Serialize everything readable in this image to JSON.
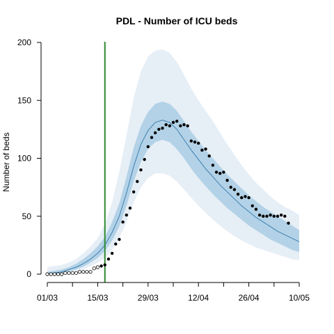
{
  "chart_data": {
    "type": "line",
    "title": "PDL - Number of ICU beds",
    "xlabel": "",
    "ylabel": "Number of beds",
    "x_range_days_from_first": [
      0,
      70
    ],
    "x_ticks": [
      {
        "day": 0,
        "label": "01/03"
      },
      {
        "day": 14,
        "label": "15/03"
      },
      {
        "day": 28,
        "label": "29/03"
      },
      {
        "day": 42,
        "label": "12/04"
      },
      {
        "day": 56,
        "label": "26/04"
      },
      {
        "day": 70,
        "label": "10/05"
      }
    ],
    "y_ticks": [
      0,
      50,
      100,
      150,
      200
    ],
    "ylim": [
      0,
      200
    ],
    "vertical_line": {
      "day": 16,
      "color": "#2e8b2e"
    },
    "colors": {
      "outer_band": "#e6eef6",
      "inner_band": "#b3d2e7",
      "median_line": "#3d7fb0",
      "observed": "#000000",
      "vline": "#2e8b2e"
    },
    "model": {
      "days": [
        0,
        2,
        4,
        6,
        8,
        10,
        12,
        14,
        16,
        18,
        20,
        22,
        24,
        26,
        28,
        30,
        32,
        34,
        36,
        38,
        40,
        42,
        44,
        46,
        48,
        50,
        52,
        54,
        56,
        58,
        60,
        62,
        64,
        66,
        68,
        70
      ],
      "median": [
        0,
        1,
        2,
        4,
        6,
        9,
        13,
        18,
        25,
        36,
        50,
        70,
        93,
        112,
        124,
        131,
        133,
        131,
        125,
        116,
        107,
        99,
        91,
        84,
        77,
        71,
        65,
        59,
        54,
        49,
        45,
        41,
        37,
        34,
        31,
        28
      ],
      "inner_lo": [
        0,
        0.5,
        1,
        2.5,
        4,
        6.5,
        10,
        14,
        20,
        29,
        41,
        59,
        80,
        97,
        108,
        114,
        116,
        114,
        108,
        100,
        91,
        83,
        76,
        69,
        63,
        57,
        52,
        47,
        42,
        38,
        34,
        30,
        27,
        24,
        21,
        19
      ],
      "inner_hi": [
        2,
        3,
        4,
        6,
        9,
        13,
        18,
        24,
        32,
        45,
        61,
        84,
        109,
        128,
        140,
        147,
        149,
        147,
        141,
        132,
        123,
        115,
        107,
        100,
        93,
        86,
        80,
        74,
        68,
        63,
        58,
        54,
        50,
        46,
        42,
        38
      ],
      "outer_lo": [
        0,
        0.3,
        0.6,
        1.5,
        2.5,
        4,
        7,
        10,
        14,
        21,
        31,
        45,
        62,
        75,
        83,
        87,
        87,
        85,
        80,
        73,
        66,
        59,
        53,
        47,
        42,
        37,
        33,
        29,
        26,
        23,
        21,
        19,
        17,
        15,
        13,
        12
      ],
      "outer_hi": [
        6,
        7,
        8,
        10,
        13,
        18,
        24,
        31,
        43,
        62,
        88,
        120,
        152,
        175,
        188,
        193,
        194,
        191,
        183,
        172,
        160,
        150,
        141,
        132,
        122,
        112,
        103,
        94,
        86,
        79,
        73,
        67,
        62,
        58,
        55,
        51
      ]
    },
    "observed_before": [
      {
        "day": 0,
        "value": 0
      },
      {
        "day": 1,
        "value": 0
      },
      {
        "day": 2,
        "value": 0
      },
      {
        "day": 3,
        "value": 0
      },
      {
        "day": 4,
        "value": 0
      },
      {
        "day": 5,
        "value": 1
      },
      {
        "day": 6,
        "value": 1
      },
      {
        "day": 7,
        "value": 1
      },
      {
        "day": 8,
        "value": 1
      },
      {
        "day": 9,
        "value": 2
      },
      {
        "day": 10,
        "value": 2
      },
      {
        "day": 11,
        "value": 2
      },
      {
        "day": 12,
        "value": 2
      },
      {
        "day": 13,
        "value": 5
      },
      {
        "day": 14,
        "value": 6
      }
    ],
    "observed_after": [
      {
        "day": 15,
        "value": 7
      },
      {
        "day": 16,
        "value": 8
      },
      {
        "day": 17,
        "value": 13
      },
      {
        "day": 18,
        "value": 18
      },
      {
        "day": 19,
        "value": 26
      },
      {
        "day": 20,
        "value": 30
      },
      {
        "day": 21,
        "value": 45
      },
      {
        "day": 22,
        "value": 51
      },
      {
        "day": 23,
        "value": 57
      },
      {
        "day": 24,
        "value": 71
      },
      {
        "day": 25,
        "value": 80
      },
      {
        "day": 26,
        "value": 90
      },
      {
        "day": 27,
        "value": 99
      },
      {
        "day": 28,
        "value": 110
      },
      {
        "day": 29,
        "value": 118
      },
      {
        "day": 30,
        "value": 122
      },
      {
        "day": 31,
        "value": 125
      },
      {
        "day": 32,
        "value": 126
      },
      {
        "day": 33,
        "value": 129
      },
      {
        "day": 34,
        "value": 128
      },
      {
        "day": 35,
        "value": 131
      },
      {
        "day": 36,
        "value": 132
      },
      {
        "day": 37,
        "value": 128
      },
      {
        "day": 38,
        "value": 129
      },
      {
        "day": 39,
        "value": 128
      },
      {
        "day": 40,
        "value": 115
      },
      {
        "day": 41,
        "value": 114
      },
      {
        "day": 42,
        "value": 113
      },
      {
        "day": 43,
        "value": 107
      },
      {
        "day": 44,
        "value": 108
      },
      {
        "day": 45,
        "value": 102
      },
      {
        "day": 46,
        "value": 94
      },
      {
        "day": 47,
        "value": 88
      },
      {
        "day": 48,
        "value": 87
      },
      {
        "day": 49,
        "value": 88
      },
      {
        "day": 50,
        "value": 81
      },
      {
        "day": 51,
        "value": 75
      },
      {
        "day": 52,
        "value": 73
      },
      {
        "day": 53,
        "value": 69
      },
      {
        "day": 54,
        "value": 66
      },
      {
        "day": 55,
        "value": 67
      },
      {
        "day": 56,
        "value": 66
      },
      {
        "day": 57,
        "value": 59
      },
      {
        "day": 58,
        "value": 56
      },
      {
        "day": 59,
        "value": 51
      },
      {
        "day": 60,
        "value": 50
      },
      {
        "day": 61,
        "value": 50
      },
      {
        "day": 62,
        "value": 51
      },
      {
        "day": 63,
        "value": 50
      },
      {
        "day": 64,
        "value": 50
      },
      {
        "day": 65,
        "value": 51
      },
      {
        "day": 66,
        "value": 50
      },
      {
        "day": 67,
        "value": 44
      }
    ]
  }
}
